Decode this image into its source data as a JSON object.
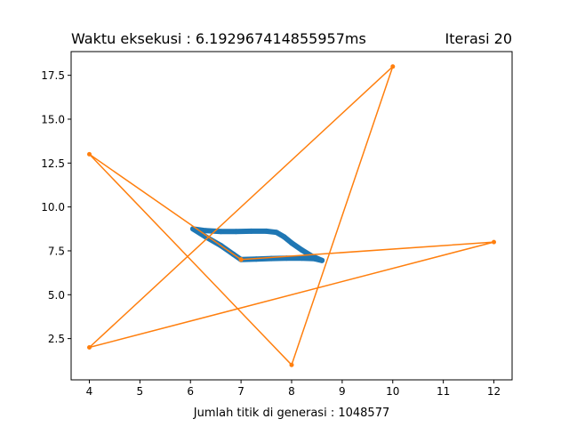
{
  "chart_data": {
    "type": "line",
    "title_left": "Waktu eksekusi : 6.192967414855957ms",
    "title_right": "Iterasi 20",
    "xlabel": "Jumlah titik di generasi : 1048577",
    "ylabel": "",
    "xlim": [
      3.64,
      12.36
    ],
    "ylim": [
      0.15,
      18.85
    ],
    "xticks": [
      4,
      5,
      6,
      7,
      8,
      9,
      10,
      11,
      12
    ],
    "xtick_labels": [
      "4",
      "5",
      "6",
      "7",
      "8",
      "9",
      "10",
      "11",
      "12"
    ],
    "yticks": [
      2.5,
      5.0,
      7.5,
      10.0,
      12.5,
      15.0,
      17.5
    ],
    "ytick_labels": [
      "2.5",
      "5.0",
      "7.5",
      "10.0",
      "12.5",
      "15.0",
      "17.5"
    ],
    "grid": false,
    "series": [
      {
        "color": "#1f77b4",
        "marker": "o",
        "linestyle": "thick",
        "x": [
          6.05,
          6.3,
          6.6,
          6.85,
          7.0,
          7.3,
          7.6,
          7.9,
          8.2,
          8.45,
          8.6,
          8.4,
          8.2,
          8.0,
          7.85,
          7.7,
          7.5,
          7.2,
          6.9,
          6.6,
          6.3,
          6.05
        ],
        "y": [
          8.75,
          8.3,
          7.8,
          7.3,
          7.0,
          7.03,
          7.06,
          7.08,
          7.08,
          7.05,
          6.95,
          7.2,
          7.55,
          7.95,
          8.3,
          8.55,
          8.62,
          8.62,
          8.6,
          8.6,
          8.65,
          8.75
        ]
      },
      {
        "color": "#ff7f0e",
        "marker": "o",
        "linestyle": "solid",
        "x": [
          7,
          12,
          4,
          10,
          8,
          4,
          7
        ],
        "y": [
          7,
          8,
          2,
          18,
          1,
          13,
          7
        ]
      }
    ]
  }
}
